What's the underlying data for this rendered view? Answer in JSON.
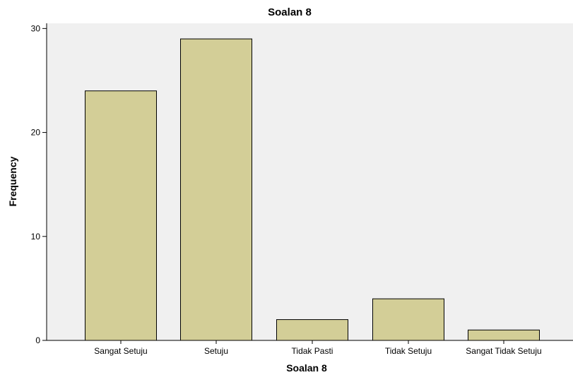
{
  "chart_data": {
    "type": "bar",
    "title": "Soalan 8",
    "xlabel": "Soalan 8",
    "ylabel": "Frequency",
    "categories": [
      "Sangat Setuju",
      "Setuju",
      "Tidak Pasti",
      "Tidak Setuju",
      "Sangat Tidak Setuju"
    ],
    "values": [
      24,
      29,
      2,
      4,
      1
    ],
    "ylim": [
      0,
      30.5
    ],
    "yticks": [
      0,
      10,
      20,
      30
    ],
    "grid": false,
    "legend": "none",
    "colors": {
      "bar_fill": "#d3ce97",
      "bar_stroke": "#000000",
      "plot_background": "#f0f0f0",
      "page_background": "#ffffff"
    }
  }
}
